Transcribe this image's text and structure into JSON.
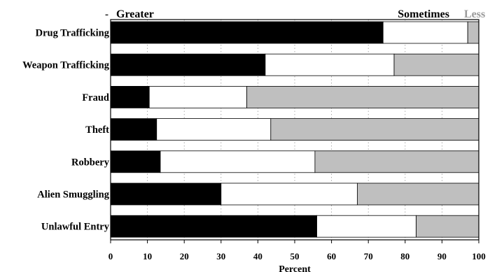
{
  "chart_data": {
    "type": "bar",
    "orientation": "horizontal",
    "stacked": true,
    "title": "",
    "xlabel": "Percent",
    "ylabel": "",
    "xlim": [
      0,
      100
    ],
    "xticks": [
      "0",
      "10",
      "20",
      "30",
      "40",
      "50",
      "60",
      "70",
      "80",
      "90",
      "100"
    ],
    "grid": "vertical dotted",
    "legend": "top",
    "categories": [
      "Drug Trafficking",
      "Weapon Trafficking",
      "Fraud",
      "Theft",
      "Robbery",
      "Alien Smuggling",
      "Unlawful Entry"
    ],
    "series": [
      {
        "name": "Greater",
        "color": "#000000",
        "values": [
          74,
          42,
          10.5,
          12.5,
          13.5,
          30,
          56
        ]
      },
      {
        "name": "Sometimes",
        "color": "#ffffff",
        "values": [
          23,
          35,
          26.5,
          31,
          42,
          37,
          27
        ]
      },
      {
        "name": "Less",
        "color": "#bfbfbf",
        "values": [
          3,
          23,
          63,
          56.5,
          44.5,
          33,
          17
        ]
      }
    ]
  }
}
